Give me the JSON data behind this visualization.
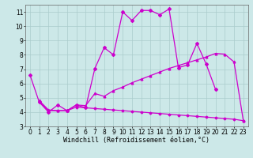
{
  "background_color": "#cce8e8",
  "line_color": "#cc00cc",
  "grid_color": "#aacccc",
  "xlabel": "Windchill (Refroidissement éolien,°C)",
  "xlabel_fontsize": 6,
  "tick_fontsize": 5.5,
  "xlim": [
    -0.5,
    23.5
  ],
  "ylim": [
    3,
    11.5
  ],
  "yticks": [
    3,
    4,
    5,
    6,
    7,
    8,
    9,
    10,
    11
  ],
  "xticks": [
    0,
    1,
    2,
    3,
    4,
    5,
    6,
    7,
    8,
    9,
    10,
    11,
    12,
    13,
    14,
    15,
    16,
    17,
    18,
    19,
    20,
    21,
    22,
    23
  ],
  "line1_x": [
    0,
    1,
    2,
    3,
    4,
    5,
    6,
    7,
    8,
    9,
    10,
    11,
    12,
    13,
    14,
    15,
    16,
    17,
    18,
    19,
    20
  ],
  "line1_y": [
    6.6,
    4.7,
    4.0,
    4.5,
    4.1,
    4.5,
    4.3,
    7.05,
    8.5,
    8.0,
    11.0,
    10.4,
    11.1,
    11.1,
    10.8,
    11.2,
    7.1,
    7.3,
    8.8,
    7.35,
    5.6
  ],
  "line2_x": [
    1,
    2,
    3,
    4,
    5,
    6,
    7,
    8,
    9,
    10,
    11,
    12,
    13,
    14,
    15,
    16,
    17,
    18,
    19,
    20,
    21,
    22,
    23
  ],
  "line2_y": [
    4.8,
    4.15,
    4.1,
    4.1,
    4.5,
    4.45,
    5.3,
    5.1,
    5.5,
    5.75,
    6.05,
    6.3,
    6.55,
    6.8,
    7.05,
    7.25,
    7.45,
    7.65,
    7.85,
    8.1,
    8.05,
    7.5,
    3.4
  ],
  "line3_x": [
    1,
    2,
    3,
    4,
    5,
    6,
    7,
    8,
    9,
    10,
    11,
    12,
    13,
    14,
    15,
    16,
    17,
    18,
    19,
    20,
    21,
    22,
    23
  ],
  "line3_y": [
    4.75,
    4.1,
    4.1,
    4.1,
    4.35,
    4.3,
    4.25,
    4.2,
    4.15,
    4.1,
    4.05,
    4.0,
    3.95,
    3.9,
    3.85,
    3.8,
    3.75,
    3.7,
    3.65,
    3.6,
    3.55,
    3.5,
    3.4
  ]
}
